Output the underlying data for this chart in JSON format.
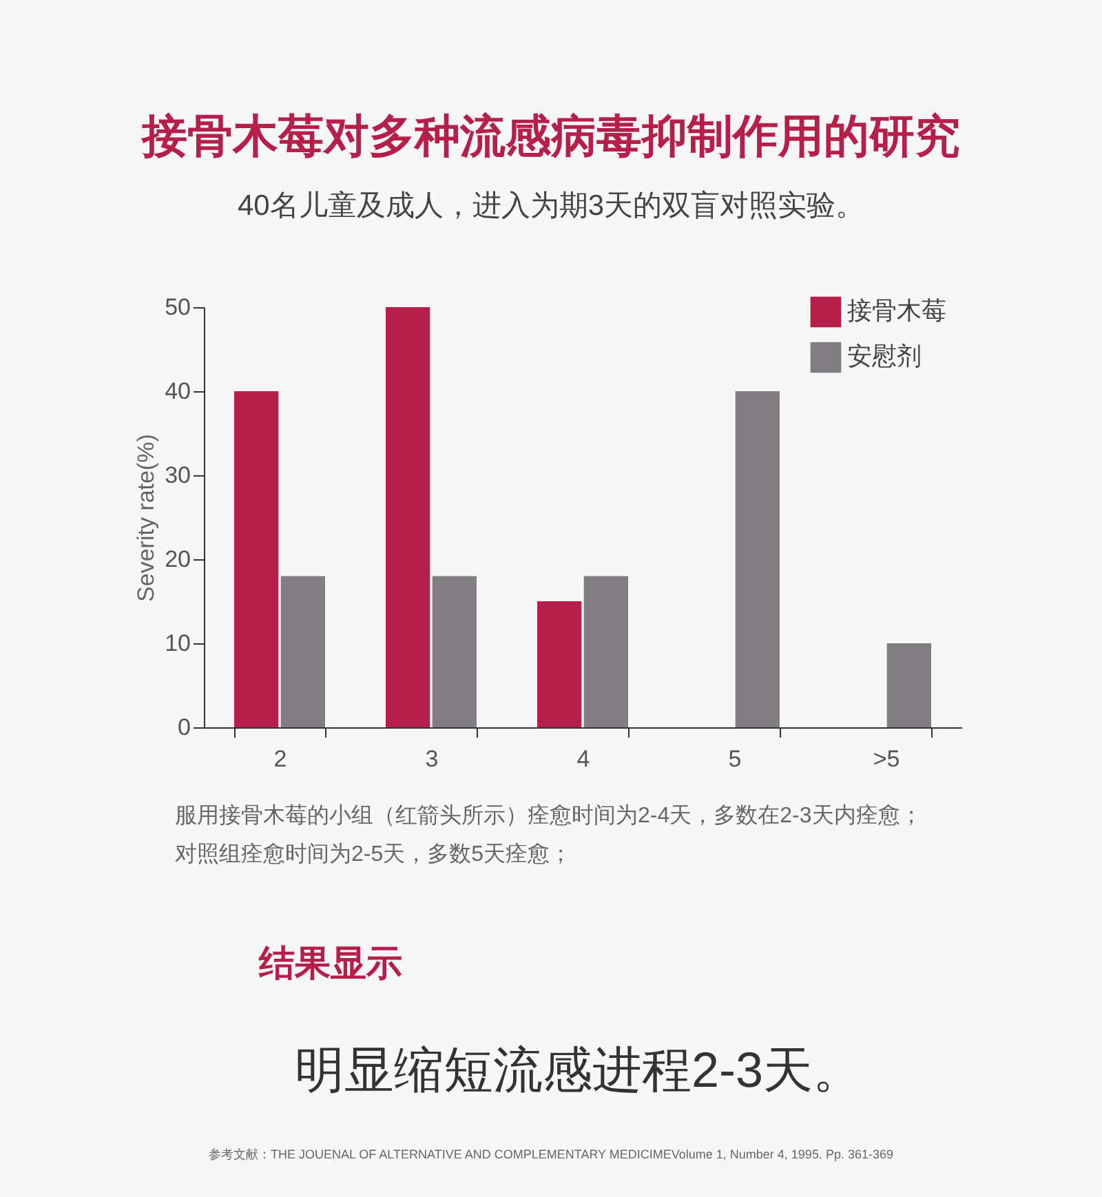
{
  "chart_data": {
    "type": "bar",
    "title": "接骨木莓对多种流感病毒抑制作用的研究",
    "subtitle": "40名儿童及成人，进入为期3天的双盲对照实验。",
    "ylabel": "Severity rate(%)",
    "categories": [
      "2",
      "3",
      "4",
      "5",
      ">5"
    ],
    "series": [
      {
        "name": "接骨木莓",
        "color": "#b51f4a",
        "values": [
          40,
          50,
          15,
          null,
          null
        ]
      },
      {
        "name": "安慰剂",
        "color": "#807e80",
        "values": [
          18,
          18,
          18,
          40,
          10
        ]
      }
    ],
    "ylim": [
      0,
      50
    ],
    "yticks": [
      0,
      10,
      20,
      30,
      40,
      50
    ],
    "grid": false,
    "legend": "top right",
    "annotations": [
      "服用接骨木莓的小组（红箭头所示）痊愈时间为2-4天，多数在2-3天内痊愈；",
      "对照组痊愈时间为2-5天，多数5天痊愈；",
      "结果显示",
      "明显缩短流感进程2-3天。",
      "参考文献：THE JOUENAL OF ALTERNATIVE AND COMPLEMENTARY  MEDICIMEVolume 1,  Number 4, 1995.  Pp. 361-369"
    ]
  }
}
